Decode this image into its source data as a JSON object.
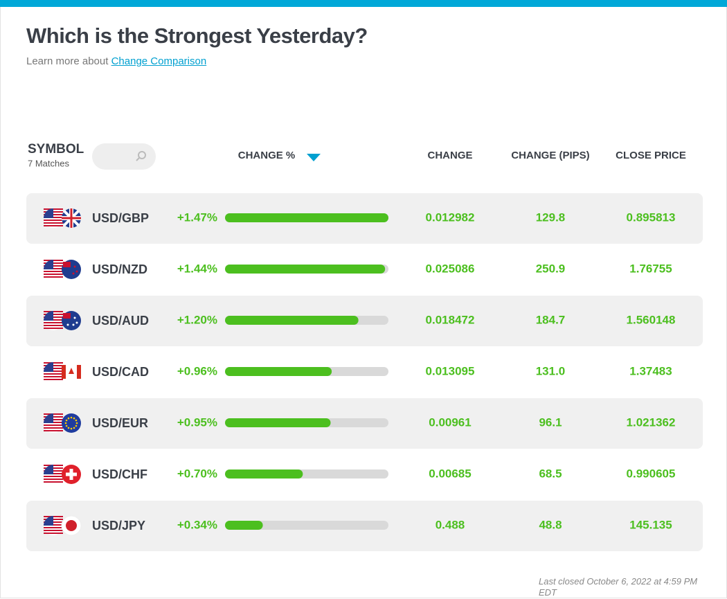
{
  "header": {
    "title": "Which is the Strongest Yesterday?",
    "learn_more": "Learn more about",
    "link": "Change Comparison"
  },
  "table": {
    "symbol_header": "SYMBOL",
    "matches": "7 Matches",
    "columns": [
      "CHANGE %",
      "CHANGE",
      "CHANGE (PIPS)",
      "CLOSE PRICE"
    ],
    "rows": [
      {
        "symbol": "USD/GBP",
        "change_pct": {
          "value": 1.47,
          "label": "+1.47%"
        },
        "change": "0.012982",
        "pips": "129.8",
        "close": "0.895813"
      },
      {
        "symbol": "USD/NZD",
        "change_pct": {
          "value": 1.44,
          "label": "+1.44%"
        },
        "change": "0.025086",
        "pips": "250.9",
        "close": "1.76755"
      },
      {
        "symbol": "USD/AUD",
        "change_pct": {
          "value": 1.2,
          "label": "+1.20%"
        },
        "change": "0.018472",
        "pips": "184.7",
        "close": "1.560148"
      },
      {
        "symbol": "USD/CAD",
        "change_pct": {
          "value": 0.96,
          "label": "+0.96%"
        },
        "change": "0.013095",
        "pips": "131.0",
        "close": "1.37483"
      },
      {
        "symbol": "USD/EUR",
        "change_pct": {
          "value": 0.95,
          "label": "+0.95%"
        },
        "change": "0.00961",
        "pips": "96.1",
        "close": "1.021362"
      },
      {
        "symbol": "USD/CHF",
        "change_pct": {
          "value": 0.7,
          "label": "+0.70%"
        },
        "change": "0.00685",
        "pips": "68.5",
        "close": "0.990605"
      },
      {
        "symbol": "USD/JPY",
        "change_pct": {
          "value": 0.34,
          "label": "+0.34%"
        },
        "change": "0.488",
        "pips": "48.8",
        "close": "145.135"
      }
    ]
  },
  "footer": {
    "note": "Last closed October 6, 2022 at 4:59 PM EDT"
  }
}
